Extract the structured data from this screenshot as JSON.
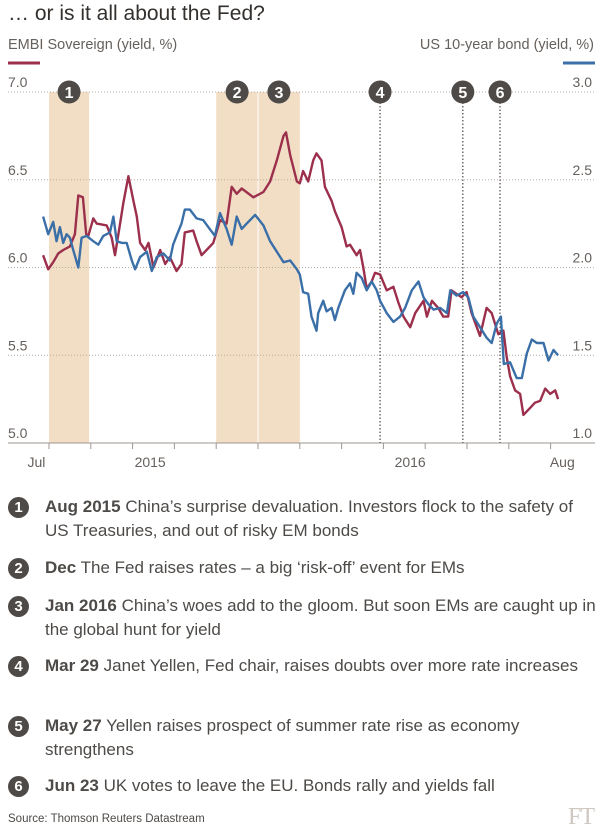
{
  "title": "… or is it all about the Fed?",
  "colors": {
    "embi": "#9b2f4c",
    "us10": "#3b6fa8",
    "shade": "#f2dec5",
    "marker": "#4d4a47",
    "grid": "#b7aaa0"
  },
  "chart_data": {
    "type": "line",
    "x_unit": "months since 1 Aug 2015",
    "xlim": [
      -0.4,
      12.6
    ],
    "x_ticks": [
      0,
      1,
      2,
      3,
      4,
      5,
      6,
      7,
      8,
      9,
      10,
      11,
      12
    ],
    "x_labels": [
      {
        "text": "Jul",
        "x": -0.3
      },
      {
        "text": "2015",
        "x": 2.42
      },
      {
        "text": "2016",
        "x": 8.64
      },
      {
        "text": "Aug",
        "x": 12.28
      }
    ],
    "left_axis": {
      "label": "EMBI Sovereign (yield, %)",
      "range": [
        5.0,
        7.0
      ],
      "ticks": [
        "5.0",
        "5.5",
        "6.0",
        "6.5",
        "7.0"
      ]
    },
    "right_axis": {
      "label": "US 10-year bond (yield, %)",
      "range": [
        1.0,
        3.0
      ],
      "ticks": [
        "1.0",
        "1.5",
        "2.0",
        "2.5",
        "3.0"
      ]
    },
    "grid": true,
    "series": [
      {
        "name": "EMBI Sovereign (yield, %)",
        "axis": "left",
        "x": [
          -0.14,
          -0.02,
          0.1,
          0.22,
          0.34,
          0.5,
          0.62,
          0.7,
          0.81,
          0.89,
          0.94,
          1.06,
          1.14,
          1.38,
          1.5,
          1.58,
          1.7,
          1.78,
          1.9,
          2.02,
          2.1,
          2.18,
          2.3,
          2.38,
          2.5,
          2.66,
          2.78,
          2.89,
          3.05,
          3.17,
          3.25,
          3.45,
          3.53,
          3.65,
          3.77,
          3.93,
          4.09,
          4.25,
          4.37,
          4.49,
          4.61,
          4.89,
          5.13,
          5.29,
          5.45,
          5.61,
          5.67,
          5.77,
          5.93,
          6.0,
          6.08,
          6.2,
          6.32,
          6.4,
          6.52,
          6.6,
          6.76,
          6.84,
          7.0,
          7.12,
          7.2,
          7.36,
          7.44,
          7.52,
          7.6,
          7.72,
          7.8,
          7.92,
          8.08,
          8.24,
          8.36,
          8.48,
          8.64,
          8.76,
          8.96,
          9.04,
          9.16,
          9.31,
          9.43,
          9.55,
          9.63,
          9.75,
          9.87,
          9.99,
          10.11,
          10.31,
          10.47,
          10.59,
          10.75,
          10.87,
          10.95,
          11.03,
          11.15,
          11.27,
          11.35,
          11.51,
          11.63,
          11.75,
          11.87,
          11.99,
          12.11,
          12.18
        ],
        "y": [
          6.07,
          5.99,
          6.03,
          6.08,
          6.1,
          6.12,
          6.19,
          6.41,
          6.4,
          6.19,
          6.18,
          6.28,
          6.25,
          6.24,
          6.17,
          6.07,
          6.25,
          6.37,
          6.52,
          6.38,
          6.29,
          6.14,
          6.1,
          6.14,
          6.0,
          6.1,
          6.02,
          6.06,
          5.98,
          6.02,
          6.2,
          6.21,
          6.15,
          6.07,
          6.1,
          6.14,
          6.27,
          6.25,
          6.46,
          6.42,
          6.45,
          6.4,
          6.43,
          6.49,
          6.61,
          6.75,
          6.77,
          6.64,
          6.49,
          6.48,
          6.55,
          6.49,
          6.61,
          6.65,
          6.61,
          6.46,
          6.38,
          6.32,
          6.23,
          6.12,
          6.13,
          6.07,
          6.1,
          6.0,
          5.88,
          5.92,
          5.97,
          5.96,
          5.87,
          5.89,
          5.8,
          5.72,
          5.66,
          5.74,
          5.81,
          5.72,
          5.81,
          5.77,
          5.72,
          5.72,
          5.87,
          5.85,
          5.83,
          5.86,
          5.74,
          5.61,
          5.77,
          5.74,
          5.62,
          5.64,
          5.49,
          5.38,
          5.3,
          5.28,
          5.16,
          5.2,
          5.23,
          5.24,
          5.31,
          5.28,
          5.3,
          5.25
        ]
      },
      {
        "name": "US 10-year bond (yield, %)",
        "axis": "right",
        "x": [
          -0.14,
          -0.02,
          0.1,
          0.18,
          0.26,
          0.34,
          0.42,
          0.5,
          0.58,
          0.7,
          0.78,
          0.9,
          1.06,
          1.18,
          1.3,
          1.46,
          1.54,
          1.62,
          1.74,
          1.86,
          1.98,
          2.06,
          2.18,
          2.34,
          2.46,
          2.58,
          2.74,
          2.89,
          2.97,
          3.05,
          3.17,
          3.25,
          3.37,
          3.53,
          3.69,
          3.81,
          3.97,
          4.09,
          4.25,
          4.37,
          4.49,
          4.61,
          4.73,
          4.93,
          5.13,
          5.29,
          5.45,
          5.61,
          5.77,
          5.93,
          6.0,
          6.08,
          6.2,
          6.28,
          6.4,
          6.44,
          6.56,
          6.64,
          6.76,
          6.84,
          6.92,
          7.0,
          7.08,
          7.2,
          7.28,
          7.36,
          7.48,
          7.6,
          7.72,
          7.84,
          7.92,
          8.08,
          8.24,
          8.4,
          8.52,
          8.68,
          8.84,
          8.96,
          9.08,
          9.2,
          9.36,
          9.52,
          9.6,
          9.75,
          9.91,
          10.03,
          10.15,
          10.31,
          10.47,
          10.59,
          10.71,
          10.81,
          10.88,
          11.03,
          11.19,
          11.31,
          11.43,
          11.55,
          11.67,
          11.83,
          11.95,
          12.07,
          12.18
        ],
        "y": [
          2.29,
          2.19,
          2.26,
          2.15,
          2.23,
          2.14,
          2.19,
          2.17,
          2.1,
          2.0,
          2.17,
          2.18,
          2.15,
          2.13,
          2.18,
          2.2,
          2.29,
          2.15,
          2.14,
          2.14,
          2.04,
          1.99,
          2.06,
          2.09,
          1.98,
          2.06,
          2.08,
          2.04,
          2.13,
          2.18,
          2.25,
          2.33,
          2.33,
          2.28,
          2.27,
          2.23,
          2.18,
          2.31,
          2.22,
          2.13,
          2.29,
          2.22,
          2.25,
          2.3,
          2.24,
          2.15,
          2.09,
          2.03,
          2.04,
          1.99,
          1.96,
          1.86,
          1.85,
          1.72,
          1.64,
          1.74,
          1.81,
          1.75,
          1.77,
          1.7,
          1.77,
          1.82,
          1.87,
          1.91,
          1.85,
          1.97,
          1.94,
          1.87,
          1.92,
          1.87,
          1.81,
          1.74,
          1.69,
          1.72,
          1.77,
          1.87,
          1.92,
          1.83,
          1.79,
          1.76,
          1.77,
          1.74,
          1.87,
          1.84,
          1.86,
          1.83,
          1.72,
          1.66,
          1.6,
          1.57,
          1.68,
          1.72,
          1.45,
          1.46,
          1.37,
          1.37,
          1.51,
          1.59,
          1.57,
          1.57,
          1.47,
          1.53,
          1.5
        ]
      }
    ],
    "shaded_periods": [
      {
        "from": 0,
        "to": 0.96
      },
      {
        "from": 4,
        "to": 5
      },
      {
        "from": 5,
        "to": 6
      }
    ],
    "event_markers": [
      {
        "label": "1",
        "x": 0.48,
        "line": false
      },
      {
        "label": "2",
        "x": 4.5,
        "line": false
      },
      {
        "label": "3",
        "x": 5.5,
        "line": false
      },
      {
        "label": "4",
        "x": 7.92,
        "line": true
      },
      {
        "label": "5",
        "x": 9.9,
        "line": true
      },
      {
        "label": "6",
        "x": 10.79,
        "line": true
      }
    ]
  },
  "events": [
    {
      "num": "1",
      "date": "Aug 2015",
      "text": "China’s surprise devaluation. Investors flock to the safety of US Treasuries, and out of risky EM bonds"
    },
    {
      "num": "2",
      "date": "Dec",
      "text": "The Fed raises rates – a big ‘risk-off’ event for EMs"
    },
    {
      "num": "3",
      "date": "Jan 2016",
      "text": "China’s woes add to the gloom. But soon EMs are caught up in the global hunt for yield"
    },
    {
      "num": "4",
      "date": "Mar 29",
      "text": "Janet Yellen, Fed chair, raises doubts over more rate increases"
    },
    {
      "num": "5",
      "date": "May 27",
      "text": "Yellen raises prospect of summer rate rise as economy strengthens"
    },
    {
      "num": "6",
      "date": "Jun 23",
      "text": "UK votes to leave the EU. Bonds rally and yields fall"
    }
  ],
  "source": "Source: Thomson Reuters Datastream",
  "logo": "FT"
}
